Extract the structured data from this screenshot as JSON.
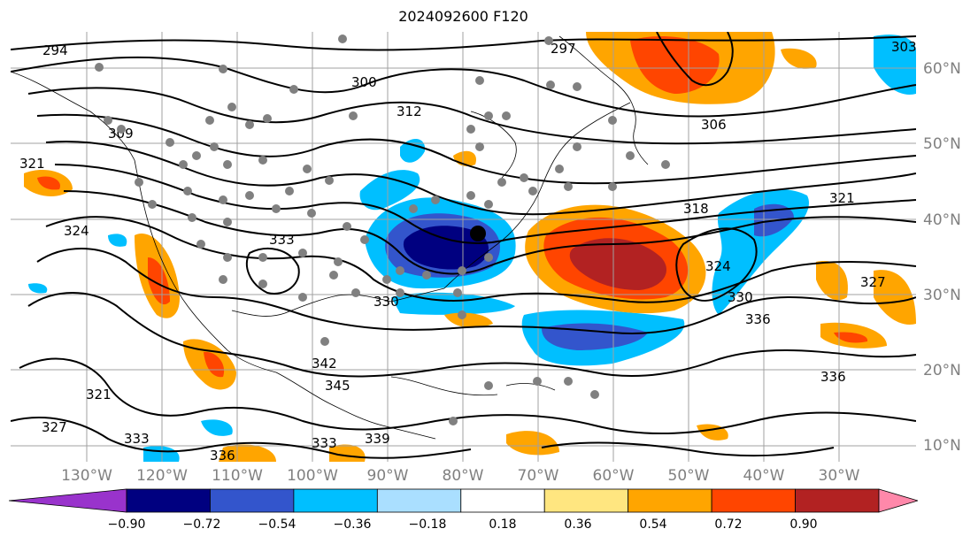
{
  "title": "2024092600 F120",
  "lon_labels": [
    "130°W",
    "120°W",
    "110°W",
    "100°W",
    "90°W",
    "80°W",
    "70°W",
    "60°W",
    "50°W",
    "40°W",
    "30°W"
  ],
  "lat_labels": [
    "60°N",
    "50°N",
    "40°N",
    "30°N",
    "20°N",
    "10°N"
  ],
  "contour_labels": [
    "294",
    "297",
    "300",
    "303",
    "306",
    "309",
    "312",
    "318",
    "321",
    "321",
    "321",
    "324",
    "324",
    "327",
    "327",
    "330",
    "330",
    "333",
    "333",
    "333",
    "336",
    "336",
    "336",
    "339",
    "342",
    "345"
  ],
  "colorbar": {
    "ticks": [
      "−0.90",
      "−0.72",
      "−0.54",
      "−0.36",
      "−0.18",
      "0.18",
      "0.36",
      "0.54",
      "0.72",
      "0.90"
    ],
    "colors": [
      "#9933cc",
      "#000080",
      "#3355cc",
      "#00bfff",
      "#aadfff",
      "#ffffff",
      "#ffe680",
      "#ffa500",
      "#ff4500",
      "#b22222",
      "#ff88aa"
    ]
  }
}
